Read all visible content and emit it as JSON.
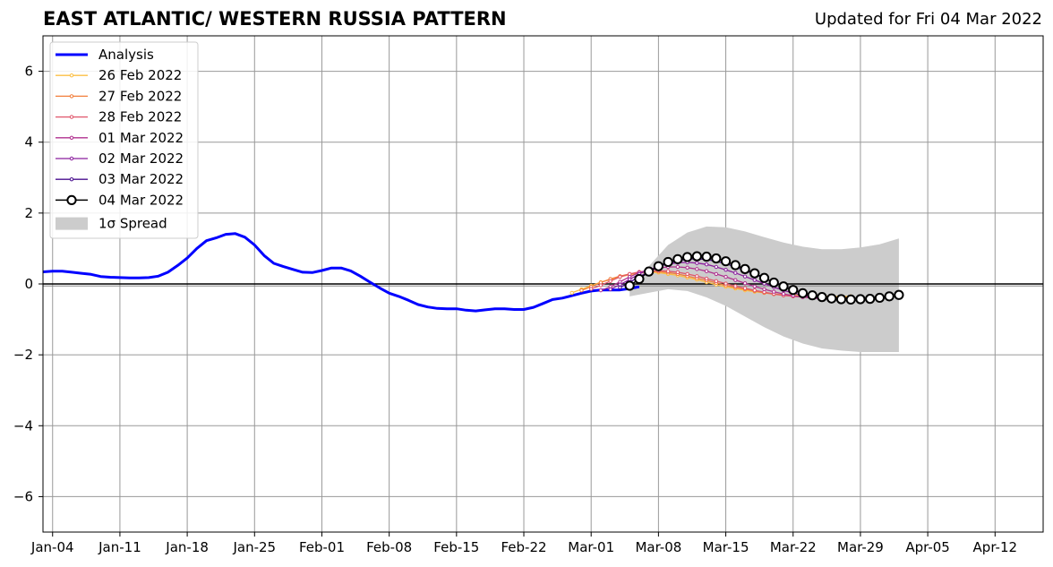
{
  "chart_data": {
    "type": "line",
    "title": "EAST ATLANTIC/ WESTERN RUSSIA PATTERN",
    "subtitle": "Updated for Fri 04 Mar 2022",
    "xlabel": "",
    "ylabel": "",
    "x_range": [
      "2022-01-03",
      "2022-04-17"
    ],
    "ylim": [
      -7,
      7
    ],
    "y_ticks": [
      -6,
      -4,
      -2,
      0,
      2,
      4,
      6
    ],
    "y_tick_labels": [
      "−6",
      "−4",
      "−2",
      "0",
      "2",
      "4",
      "6"
    ],
    "x_ticks": [
      "2022-01-04",
      "2022-01-11",
      "2022-01-18",
      "2022-01-25",
      "2022-02-01",
      "2022-02-08",
      "2022-02-15",
      "2022-02-22",
      "2022-03-01",
      "2022-03-08",
      "2022-03-15",
      "2022-03-22",
      "2022-03-29",
      "2022-04-05",
      "2022-04-12"
    ],
    "x_tick_labels": [
      "Jan-04",
      "Jan-11",
      "Jan-18",
      "Jan-25",
      "Feb-01",
      "Feb-08",
      "Feb-15",
      "Feb-22",
      "Mar-01",
      "Mar-08",
      "Mar-15",
      "Mar-22",
      "Mar-29",
      "Apr-05",
      "Apr-12"
    ],
    "grid": true,
    "zero_line": true,
    "legend_position": "top-left",
    "analysis": {
      "name": "Analysis",
      "color": "#0000ff",
      "start": "2022-01-03",
      "values": [
        0.34,
        0.36,
        0.36,
        0.33,
        0.3,
        0.27,
        0.21,
        0.19,
        0.18,
        0.17,
        0.17,
        0.18,
        0.22,
        0.33,
        0.52,
        0.73,
        1.0,
        1.22,
        1.3,
        1.4,
        1.42,
        1.32,
        1.1,
        0.8,
        0.58,
        0.49,
        0.41,
        0.33,
        0.32,
        0.38,
        0.45,
        0.45,
        0.37,
        0.22,
        0.05,
        -0.11,
        -0.26,
        -0.35,
        -0.46,
        -0.58,
        -0.65,
        -0.69,
        -0.7,
        -0.7,
        -0.74,
        -0.76,
        -0.73,
        -0.7,
        -0.7,
        -0.72,
        -0.72,
        -0.66,
        -0.55,
        -0.44,
        -0.4,
        -0.33,
        -0.26,
        -0.2,
        -0.17,
        -0.17,
        -0.17,
        -0.13,
        -0.08
      ]
    },
    "spread": {
      "name": "1σ Spread",
      "color": "#cccccc",
      "x": [
        "2022-03-05",
        "2022-03-07",
        "2022-03-09",
        "2022-03-11",
        "2022-03-13",
        "2022-03-15",
        "2022-03-17",
        "2022-03-19",
        "2022-03-21",
        "2022-03-23",
        "2022-03-25",
        "2022-03-27",
        "2022-03-29",
        "2022-03-31",
        "2022-04-02"
      ],
      "upper": [
        -0.2,
        0.5,
        1.1,
        1.45,
        1.62,
        1.6,
        1.48,
        1.32,
        1.17,
        1.05,
        0.98,
        0.98,
        1.03,
        1.12,
        1.28
      ],
      "lower": [
        -0.35,
        -0.25,
        -0.15,
        -0.2,
        -0.38,
        -0.62,
        -0.92,
        -1.22,
        -1.48,
        -1.68,
        -1.82,
        -1.88,
        -1.92,
        -1.92,
        -1.92
      ]
    },
    "series": [
      {
        "name": "26 Feb 2022",
        "color": "#fbbf45",
        "start": "2022-02-27",
        "values": [
          -0.25,
          -0.15,
          -0.05,
          0.05,
          0.12,
          0.2,
          0.26,
          0.3,
          0.33,
          0.32,
          0.28,
          0.24,
          0.18,
          0.12,
          0.05,
          -0.02,
          -0.08,
          -0.13,
          -0.18,
          -0.22,
          -0.25,
          -0.28,
          -0.3,
          -0.31,
          -0.32,
          -0.33,
          -0.34,
          -0.35,
          -0.35,
          -0.35
        ]
      },
      {
        "name": "27 Feb 2022",
        "color": "#f27e3b",
        "start": "2022-02-28",
        "values": [
          -0.18,
          -0.08,
          0.04,
          0.14,
          0.22,
          0.28,
          0.32,
          0.34,
          0.35,
          0.32,
          0.28,
          0.22,
          0.16,
          0.1,
          0.03,
          -0.04,
          -0.1,
          -0.15,
          -0.2,
          -0.25,
          -0.29,
          -0.32,
          -0.34,
          -0.36,
          -0.37,
          -0.38,
          -0.38,
          -0.38,
          -0.38
        ]
      },
      {
        "name": "28 Feb 2022",
        "color": "#e0566b",
        "start": "2022-03-01",
        "values": [
          -0.14,
          -0.04,
          0.08,
          0.2,
          0.28,
          0.34,
          0.37,
          0.38,
          0.36,
          0.33,
          0.28,
          0.22,
          0.15,
          0.08,
          0.01,
          -0.06,
          -0.12,
          -0.18,
          -0.23,
          -0.28,
          -0.32,
          -0.35,
          -0.37,
          -0.39,
          -0.4,
          -0.41,
          -0.41,
          -0.41
        ]
      },
      {
        "name": "01 Mar 2022",
        "color": "#b0318f",
        "start": "2022-03-02",
        "values": [
          -0.18,
          -0.08,
          0.06,
          0.2,
          0.32,
          0.4,
          0.45,
          0.48,
          0.48,
          0.46,
          0.42,
          0.36,
          0.28,
          0.2,
          0.11,
          0.02,
          -0.07,
          -0.15,
          -0.22,
          -0.28,
          -0.33,
          -0.37,
          -0.4,
          -0.42,
          -0.43,
          -0.43,
          -0.43
        ]
      },
      {
        "name": "02 Mar 2022",
        "color": "#8b1f9e",
        "start": "2022-03-03",
        "values": [
          -0.15,
          -0.02,
          0.13,
          0.28,
          0.4,
          0.5,
          0.56,
          0.6,
          0.61,
          0.59,
          0.55,
          0.48,
          0.4,
          0.31,
          0.21,
          0.11,
          0.01,
          -0.09,
          -0.18,
          -0.26,
          -0.32,
          -0.37,
          -0.41,
          -0.43,
          -0.44,
          -0.44
        ]
      },
      {
        "name": "03 Mar 2022",
        "color": "#4a0f8f",
        "start": "2022-03-04",
        "values": [
          -0.1,
          0.05,
          0.2,
          0.35,
          0.48,
          0.58,
          0.65,
          0.7,
          0.71,
          0.69,
          0.64,
          0.57,
          0.48,
          0.38,
          0.27,
          0.16,
          0.05,
          -0.06,
          -0.16,
          -0.25,
          -0.32,
          -0.38,
          -0.42,
          -0.44,
          -0.45
        ]
      },
      {
        "name": "04 Mar 2022",
        "color": "#000000",
        "start": "2022-03-05",
        "markers": "open-circle",
        "values": [
          -0.05,
          0.14,
          0.35,
          0.5,
          0.62,
          0.7,
          0.76,
          0.78,
          0.77,
          0.72,
          0.64,
          0.53,
          0.42,
          0.3,
          0.17,
          0.04,
          -0.07,
          -0.17,
          -0.26,
          -0.32,
          -0.37,
          -0.41,
          -0.43,
          -0.44,
          -0.43,
          -0.42,
          -0.39,
          -0.35,
          -0.31
        ]
      }
    ]
  }
}
